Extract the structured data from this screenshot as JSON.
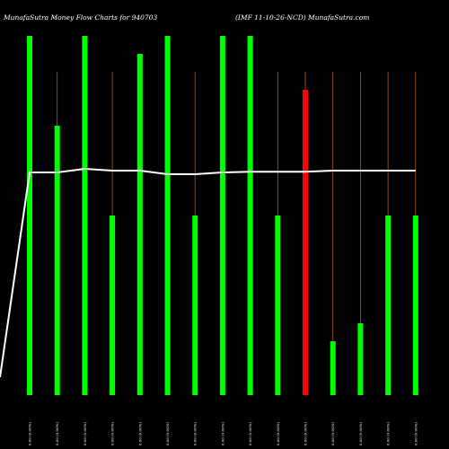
{
  "chart_data": {
    "type": "bar",
    "title_left": "MunafaSutra  Money Flow  Charts for 940703",
    "title_right": "(IMF 11-10-26-NCD) MunafaSutra.com",
    "xlabel": "",
    "ylabel": "",
    "ylim": [
      0,
      100
    ],
    "grid": false,
    "legend": "none",
    "colors": {
      "up": "#00ff00",
      "down": "#ff0000",
      "line": "#ffffff",
      "stem": "#b85a1a",
      "background": "#000000"
    },
    "categories": [
      "0.00 (0.00%)",
      "0.00 (0.00%)",
      "0.00 (0.00%)",
      "0.00 (0.00%)",
      "0.00 (0.00%)",
      "0.00 (0.00%)",
      "0.00 (0.00%)",
      "0.00 (0.00%)",
      "0.00 (0.00%)",
      "0.00 (0.00%)",
      "0.00 (0.00%)",
      "0.00 (0.00%)",
      "0.00 (0.00%)",
      "0.00 (0.00%)",
      "0.00 (0.00%)"
    ],
    "values": [
      100,
      75,
      100,
      50,
      95,
      100,
      50,
      100,
      100,
      50,
      85,
      15,
      20,
      50,
      50
    ],
    "bar_colors": [
      "green",
      "green",
      "green",
      "green",
      "green",
      "green",
      "green",
      "green",
      "green",
      "green",
      "red",
      "green",
      "green",
      "green",
      "green"
    ],
    "line_values": [
      62,
      62,
      63,
      62.5,
      62.5,
      61.5,
      61.5,
      62,
      62.2,
      62.2,
      62.2,
      62.5,
      62.5,
      62.5,
      62.5
    ],
    "line_start_value": 5
  }
}
